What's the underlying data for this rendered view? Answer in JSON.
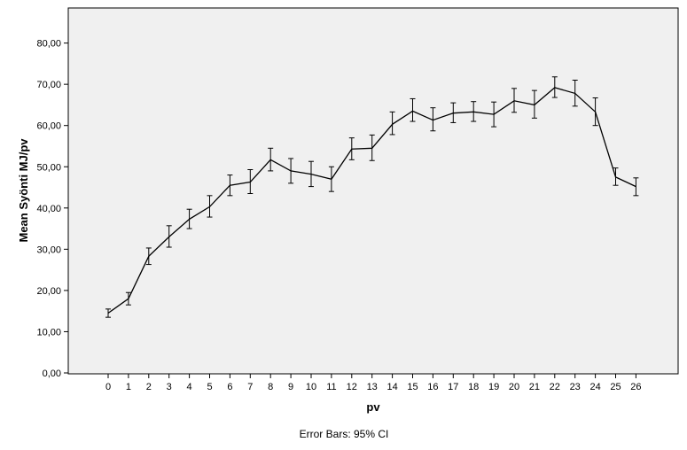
{
  "chart_data": {
    "type": "line",
    "xlabel": "pv",
    "ylabel": "Mean Syönti MJ/pv",
    "footnote": "Error Bars: 95% CI",
    "ylim": [
      0,
      85
    ],
    "y_ticks": [
      0,
      10,
      20,
      30,
      40,
      50,
      60,
      70,
      80
    ],
    "y_tick_labels": [
      "0,00",
      "10,00",
      "20,00",
      "30,00",
      "40,00",
      "50,00",
      "60,00",
      "70,00",
      "80,00"
    ],
    "grid": false,
    "categories": [
      "0",
      "1",
      "2",
      "3",
      "4",
      "5",
      "6",
      "7",
      "8",
      "9",
      "10",
      "11",
      "12",
      "13",
      "14",
      "15",
      "16",
      "17",
      "18",
      "19",
      "20",
      "21",
      "22",
      "23",
      "24",
      "25",
      "26"
    ],
    "series": [
      {
        "values": [
          14.5,
          18.0,
          28.3,
          33.0,
          37.3,
          40.3,
          45.5,
          46.3,
          51.7,
          49.0,
          48.2,
          47.0,
          54.3,
          54.5,
          60.3,
          63.5,
          61.3,
          63.0,
          63.3,
          62.7,
          66.0,
          65.0,
          69.2,
          67.8,
          63.3,
          47.5,
          45.2
        ],
        "ci_lower": [
          13.5,
          16.5,
          26.3,
          30.5,
          35.0,
          37.8,
          43.0,
          43.5,
          49.0,
          46.0,
          45.2,
          44.0,
          51.7,
          51.5,
          57.8,
          61.0,
          58.7,
          60.7,
          61.0,
          59.7,
          63.2,
          61.8,
          66.8,
          64.7,
          60.0,
          45.5,
          43.0
        ],
        "ci_upper": [
          15.5,
          19.5,
          30.3,
          35.7,
          39.7,
          43.0,
          48.0,
          49.3,
          54.5,
          52.0,
          51.3,
          50.0,
          57.0,
          57.7,
          63.3,
          66.5,
          64.3,
          65.5,
          65.8,
          65.7,
          69.0,
          68.5,
          71.8,
          71.0,
          66.7,
          49.7,
          47.3
        ],
        "color": "#000000"
      }
    ],
    "colors": {
      "plot_background": "#f0f0f0",
      "frame": "#000000",
      "page_background": "#ffffff"
    }
  }
}
